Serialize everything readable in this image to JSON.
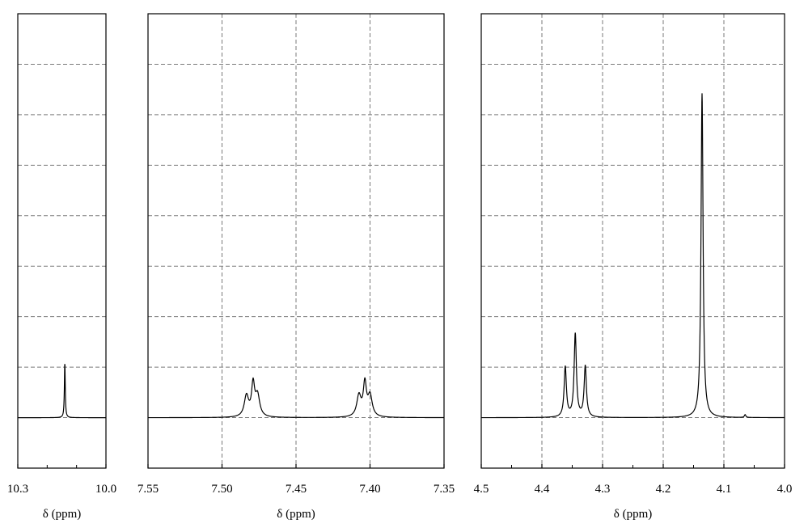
{
  "chart_data": {
    "type": "line",
    "title": "",
    "description": "1H NMR spectrum shown in three broken-axis panels (x reversed, chemical shift decreasing to the right)",
    "grid": true,
    "grid_style": "dashed",
    "y_axis": {
      "visible_labels": false,
      "divisions": 9,
      "baseline_fraction": 0.111
    },
    "panels": [
      {
        "id": "panel-aldehyde",
        "xlabel": "δ (ppm)",
        "xlim": [
          10.3,
          10.0
        ],
        "xticks": [
          10.3,
          10.0
        ],
        "minor_ticks": [
          10.2,
          10.1
        ],
        "tick_labels": [
          "10.3",
          "10.0"
        ],
        "vertical_grid": [],
        "peaks": [
          {
            "ppm": 10.14,
            "height": 0.137,
            "width": 0.0035,
            "label": "singlet"
          }
        ]
      },
      {
        "id": "panel-aromatic",
        "xlabel": "δ (ppm)",
        "xlim": [
          7.55,
          7.35
        ],
        "xticks": [
          7.55,
          7.5,
          7.45,
          7.4,
          7.35
        ],
        "tick_labels": [
          "7.55",
          "7.50",
          "7.45",
          "7.40",
          "7.35"
        ],
        "vertical_grid": [
          7.5,
          7.45,
          7.4
        ],
        "peaks": [
          {
            "ppm": 7.4835,
            "height": 0.052,
            "width": 0.0035
          },
          {
            "ppm": 7.479,
            "height": 0.078,
            "width": 0.0025
          },
          {
            "ppm": 7.476,
            "height": 0.052,
            "width": 0.0035
          },
          {
            "ppm": 7.4075,
            "height": 0.052,
            "width": 0.0035
          },
          {
            "ppm": 7.4035,
            "height": 0.08,
            "width": 0.0025
          },
          {
            "ppm": 7.4,
            "height": 0.052,
            "width": 0.0035
          }
        ]
      },
      {
        "id": "panel-aliphatic",
        "xlabel": "δ (ppm)",
        "xlim": [
          4.5,
          4.0
        ],
        "xticks": [
          4.5,
          4.4,
          4.3,
          4.2,
          4.1,
          4.0
        ],
        "minor_ticks": [
          4.45,
          4.35,
          4.25,
          4.15,
          4.05
        ],
        "tick_labels": [
          "4.5",
          "4.4",
          "4.3",
          "4.2",
          "4.1",
          "4.0"
        ],
        "vertical_grid": [
          4.4,
          4.3,
          4.2,
          4.1
        ],
        "peaks": [
          {
            "ppm": 4.3615,
            "height": 0.124,
            "width": 0.0045,
            "label": "triplet-outer"
          },
          {
            "ppm": 4.345,
            "height": 0.206,
            "width": 0.0045,
            "label": "triplet-center"
          },
          {
            "ppm": 4.3285,
            "height": 0.126,
            "width": 0.0045,
            "label": "triplet-outer"
          },
          {
            "ppm": 4.136,
            "height": 0.803,
            "width": 0.004,
            "label": "singlet"
          },
          {
            "ppm": 4.065,
            "height": 0.007,
            "width": 0.003,
            "label": "minor"
          }
        ]
      }
    ]
  }
}
